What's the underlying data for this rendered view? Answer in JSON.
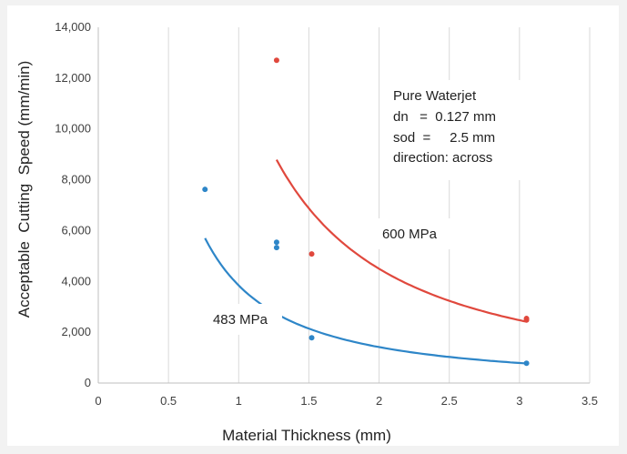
{
  "chart_data": {
    "type": "scatter",
    "xlabel": "Material Thickness (mm)",
    "ylabel": "Acceptable  Cutting  Speed (mm/min)",
    "xlim": [
      0,
      3.5
    ],
    "ylim": [
      0,
      14000
    ],
    "x_ticks": [
      "0",
      "0.5",
      "1",
      "1.5",
      "2",
      "2.5",
      "3",
      "3.5"
    ],
    "y_ticks": [
      "0",
      "2,000",
      "4,000",
      "6,000",
      "8,000",
      "10,000",
      "12,000",
      "14,000"
    ],
    "x_tick_values": [
      0,
      0.5,
      1,
      1.5,
      2,
      2.5,
      3,
      3.5
    ],
    "y_tick_values": [
      0,
      2000,
      4000,
      6000,
      8000,
      10000,
      12000,
      14000
    ],
    "grid": "vertical",
    "series": [
      {
        "name": "483 MPa",
        "color": "#2e86c8",
        "points": [
          {
            "x": 0.76,
            "y": 7620
          },
          {
            "x": 1.27,
            "y": 5540
          },
          {
            "x": 1.27,
            "y": 5330
          },
          {
            "x": 1.52,
            "y": 1780
          },
          {
            "x": 3.05,
            "y": 780
          }
        ],
        "trend": {
          "a": 3840,
          "b": -1.44,
          "x_range": [
            0.76,
            3.05
          ]
        }
      },
      {
        "name": "600 MPa",
        "color": "#e0483d",
        "points": [
          {
            "x": 1.27,
            "y": 12700
          },
          {
            "x": 1.52,
            "y": 5080
          },
          {
            "x": 3.05,
            "y": 2540
          },
          {
            "x": 3.05,
            "y": 2480
          }
        ],
        "trend": {
          "a": 12500,
          "b": -1.475,
          "x_range": [
            1.27,
            3.05
          ]
        }
      }
    ],
    "annotations": [
      "Pure Waterjet",
      "dn   =  0.127 mm",
      "sod  =     2.5 mm",
      "direction: across"
    ]
  }
}
